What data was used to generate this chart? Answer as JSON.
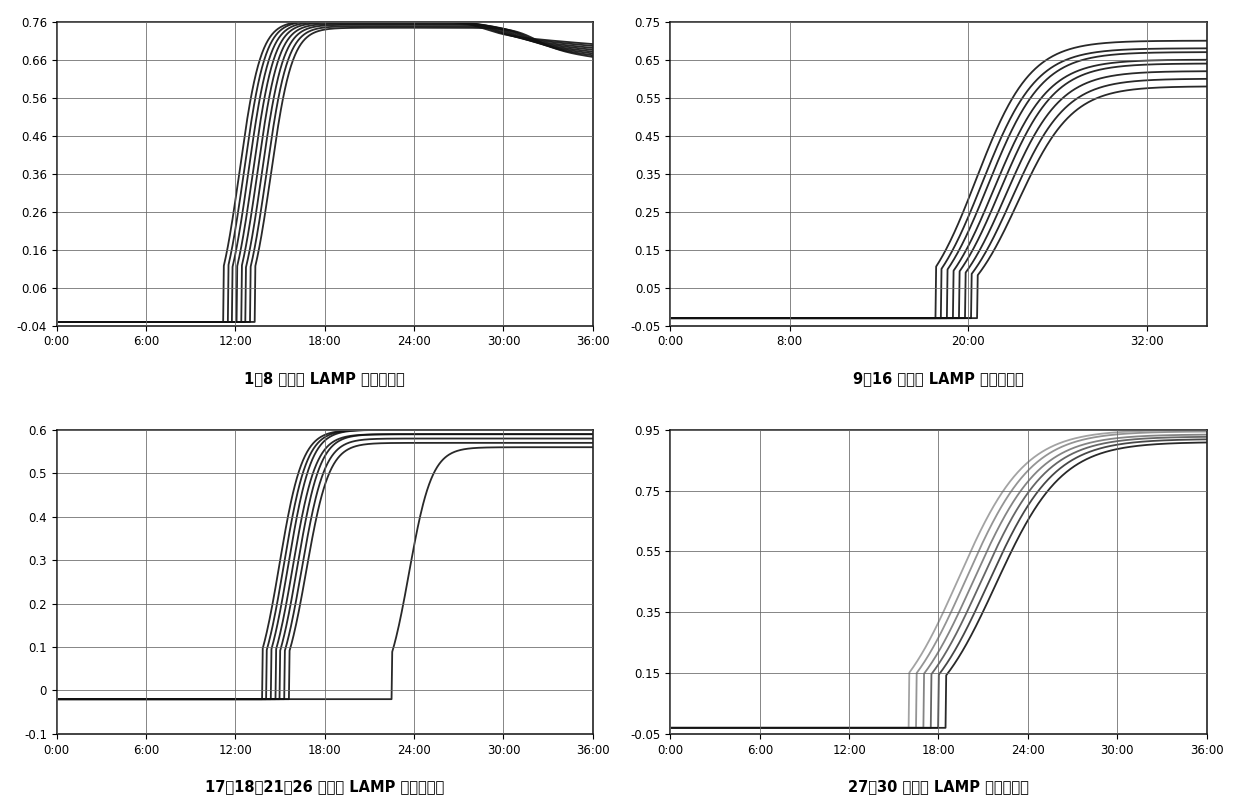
{
  "charts": [
    {
      "title": "1～8 号样品 LAMP 扩增曲线图",
      "xlim": [
        0,
        36
      ],
      "xticks": [
        0,
        6,
        12,
        18,
        24,
        30,
        36
      ],
      "xtick_labels": [
        "0:00",
        "6:00",
        "12:00",
        "18:00",
        "24:00",
        "30:00",
        "36:00"
      ],
      "ylim": [
        -0.04,
        0.76
      ],
      "yticks": [
        -0.04,
        0.06,
        0.16,
        0.26,
        0.36,
        0.46,
        0.56,
        0.66,
        0.76
      ],
      "ytick_labels": [
        "-0.04",
        "0.06",
        "0.16",
        "0.26",
        "0.36",
        "0.46",
        "0.56",
        "0.66",
        "0.76"
      ],
      "n_curves": 8,
      "rise_times": [
        11.2,
        11.5,
        11.8,
        12.1,
        12.4,
        12.7,
        13.0,
        13.3
      ],
      "peak_times": [
        28.5,
        29.0,
        29.5,
        30.0,
        30.5,
        31.0,
        31.5,
        32.0
      ],
      "peak_vals": [
        0.762,
        0.762,
        0.76,
        0.758,
        0.755,
        0.752,
        0.748,
        0.744
      ],
      "end_vals": [
        0.67,
        0.66,
        0.65,
        0.64,
        0.63,
        0.62,
        0.61,
        0.6
      ],
      "baseline": -0.03,
      "rise_steepness": 1.4,
      "shape": "rise_peak_fall"
    },
    {
      "title": "9～16 号样品 LAMP 扩增曲线图",
      "xlim": [
        0,
        36
      ],
      "xticks": [
        0,
        8,
        20,
        32
      ],
      "xtick_labels": [
        "0:00",
        "8:00",
        "20:00",
        "32:00"
      ],
      "ylim": [
        -0.05,
        0.75
      ],
      "yticks": [
        -0.05,
        0.05,
        0.15,
        0.25,
        0.35,
        0.45,
        0.55,
        0.65,
        0.75
      ],
      "ytick_labels": [
        "-0.05",
        "0.05",
        "0.15",
        "0.25",
        "0.35",
        "0.45",
        "0.55",
        "0.65",
        "0.75"
      ],
      "n_curves": 8,
      "rise_times": [
        17.8,
        18.2,
        18.6,
        19.0,
        19.4,
        19.8,
        20.2,
        20.6
      ],
      "end_vals": [
        0.7,
        0.68,
        0.67,
        0.65,
        0.64,
        0.62,
        0.6,
        0.58
      ],
      "baseline": -0.03,
      "rise_steepness": 0.55,
      "shape": "rise_only"
    },
    {
      "title": "17、18、21～26 号样品 LAMP 扩增曲线图",
      "xlim": [
        0,
        36
      ],
      "xticks": [
        0,
        6,
        12,
        18,
        24,
        30,
        36
      ],
      "xtick_labels": [
        "0:00",
        "6:00",
        "12:00",
        "18:00",
        "24:00",
        "30:00",
        "36:00"
      ],
      "ylim": [
        -0.1,
        0.6
      ],
      "yticks": [
        -0.1,
        0.0,
        0.1,
        0.2,
        0.3,
        0.4,
        0.5,
        0.6
      ],
      "ytick_labels": [
        "-0.1",
        "0",
        "0.1",
        "0.2",
        "0.3",
        "0.4",
        "0.5",
        "0.6"
      ],
      "n_curves": 8,
      "rise_times": [
        13.8,
        14.1,
        14.4,
        14.7,
        15.0,
        15.3,
        15.6,
        22.5
      ],
      "end_vals": [
        0.6,
        0.6,
        0.6,
        0.59,
        0.59,
        0.58,
        0.57,
        0.56
      ],
      "baseline": -0.02,
      "rise_steepness": 1.3,
      "shape": "rise_only"
    },
    {
      "title": "27～30 号样品 LAMP 扩增曲线图",
      "xlim": [
        0,
        36
      ],
      "xticks": [
        0,
        6,
        12,
        18,
        24,
        30,
        36
      ],
      "xtick_labels": [
        "0:00",
        "6:00",
        "12:00",
        "18:00",
        "24:00",
        "30:00",
        "36:00"
      ],
      "ylim": [
        -0.05,
        0.95
      ],
      "yticks": [
        -0.05,
        0.15,
        0.35,
        0.55,
        0.75,
        0.95
      ],
      "ytick_labels": [
        "-0.05",
        "0.15",
        "0.35",
        "0.55",
        "0.75",
        "0.95"
      ],
      "n_curves": 6,
      "rise_times": [
        16.0,
        16.5,
        17.0,
        17.5,
        18.0,
        18.5
      ],
      "end_vals": [
        0.95,
        0.945,
        0.935,
        0.928,
        0.92,
        0.91
      ],
      "baseline": -0.03,
      "rise_steepness": 0.45,
      "shape": "rise_only"
    }
  ],
  "bg_color": "#ffffff",
  "line_color": "#111111",
  "grid_color": "#666666",
  "title_fontsize": 10.5,
  "tick_fontsize": 8.5
}
